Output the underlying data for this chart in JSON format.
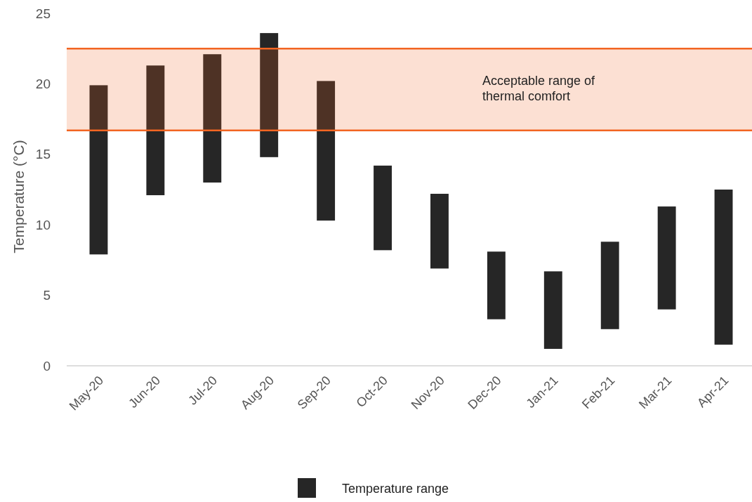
{
  "chart_data": {
    "type": "bar",
    "ylabel": "Temperature (°C)",
    "categories": [
      "May-20",
      "Jun-20",
      "Jul-20",
      "Aug-20",
      "Sep-20",
      "Oct-20",
      "Nov-20",
      "Dec-20",
      "Jan-21",
      "Feb-21",
      "Mar-21",
      "Apr-21"
    ],
    "series": [
      {
        "name": "Temperature range",
        "color": "#262626",
        "values": [
          12.0,
          9.2,
          9.1,
          8.8,
          9.9,
          6.0,
          5.3,
          4.8,
          5.5,
          6.2,
          7.3,
          11.0
        ],
        "base": [
          7.9,
          12.1,
          13.0,
          14.8,
          10.3,
          8.2,
          6.9,
          3.3,
          1.2,
          2.6,
          4.0,
          1.5
        ]
      }
    ],
    "ylim": [
      0,
      25
    ],
    "yticks": [
      0,
      5,
      10,
      15,
      20,
      25
    ],
    "grid": false,
    "legend": "bottom",
    "bands": [
      {
        "axis": "y",
        "from": 16.7,
        "to": 22.5,
        "label": "Acceptable range of thermal comfort",
        "color": "#f26522"
      }
    ],
    "ref_lines": [
      {
        "axis": "y",
        "value": 16.7,
        "color": "#f26522"
      },
      {
        "axis": "y",
        "value": 22.5,
        "color": "#f26522"
      }
    ]
  }
}
